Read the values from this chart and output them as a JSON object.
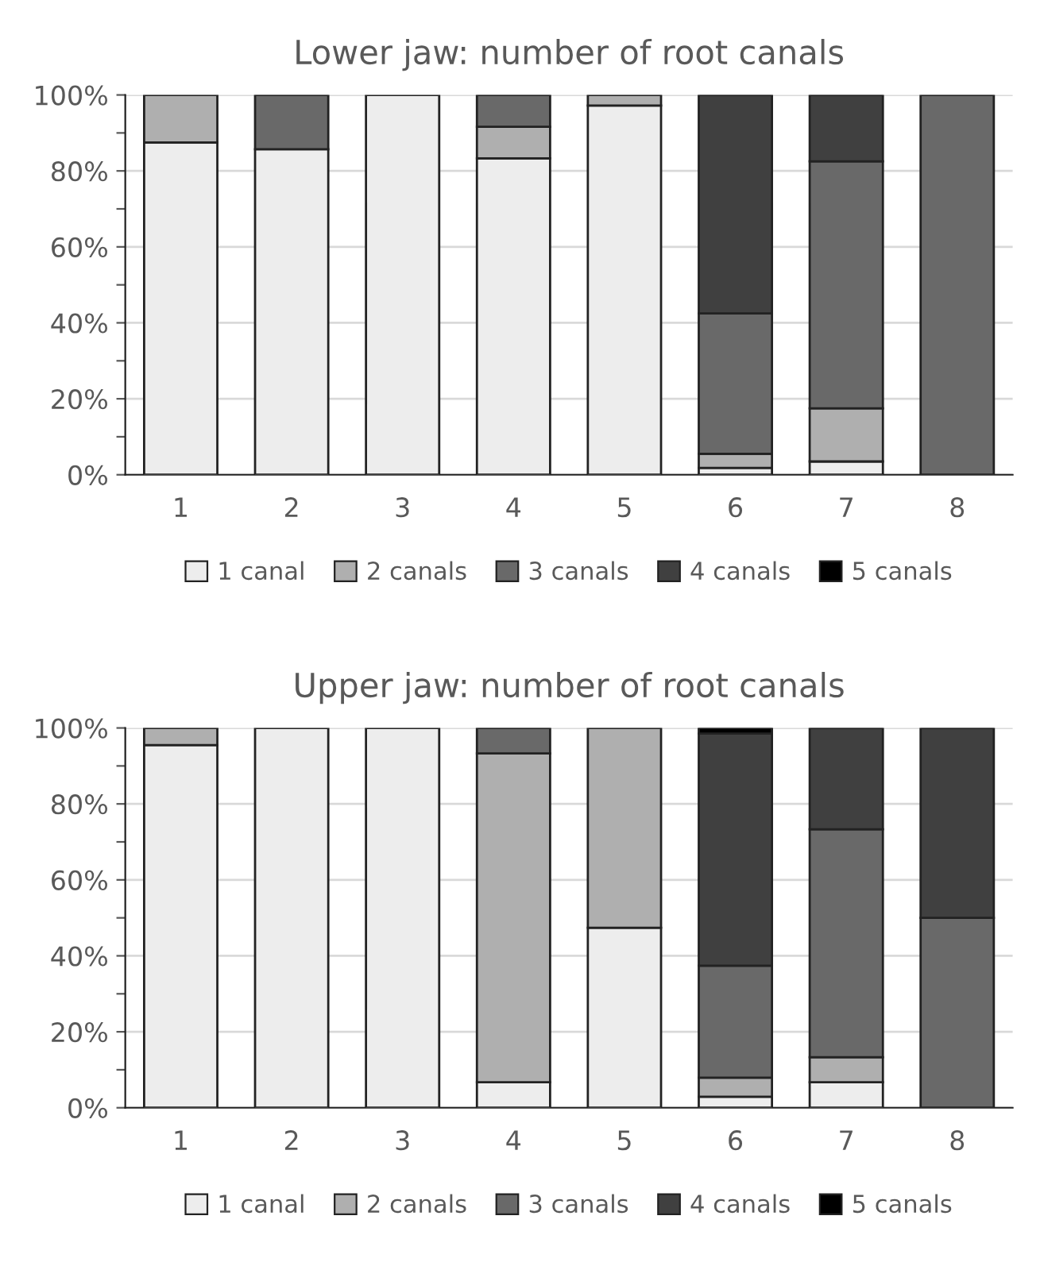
{
  "chart_data": [
    {
      "type": "bar",
      "stacked": true,
      "title": "Lower jaw: number of root canals",
      "categories": [
        "1",
        "2",
        "3",
        "4",
        "5",
        "6",
        "7",
        "8"
      ],
      "series": [
        {
          "name": "1 canal",
          "color": "#ededed",
          "values": [
            87.5,
            85.7,
            100,
            83.3,
            97.2,
            1.8,
            3.5,
            0
          ]
        },
        {
          "name": "2 canals",
          "color": "#afafaf",
          "values": [
            12.5,
            0,
            0,
            8.3,
            2.8,
            3.7,
            14,
            0
          ]
        },
        {
          "name": "3 canals",
          "color": "#696969",
          "values": [
            0,
            14.3,
            0,
            8.4,
            0,
            37,
            65,
            100
          ]
        },
        {
          "name": "4 canals",
          "color": "#404040",
          "values": [
            0,
            0,
            0,
            0,
            0,
            57.5,
            17.5,
            0
          ]
        },
        {
          "name": "5 canals",
          "color": "#000000",
          "values": [
            0,
            0,
            0,
            0,
            0,
            0,
            0,
            0
          ]
        }
      ],
      "ylim": [
        0,
        100
      ],
      "yticks": [
        {
          "value": 0,
          "label": "0%"
        },
        {
          "value": 10,
          "label": null
        },
        {
          "value": 20,
          "label": "20%"
        },
        {
          "value": 30,
          "label": null
        },
        {
          "value": 40,
          "label": "40%"
        },
        {
          "value": 50,
          "label": null
        },
        {
          "value": 60,
          "label": "60%"
        },
        {
          "value": 70,
          "label": null
        },
        {
          "value": 80,
          "label": "80%"
        },
        {
          "value": 90,
          "label": null
        },
        {
          "value": 100,
          "label": "100%"
        }
      ],
      "grid": "y",
      "legend": "bottom"
    },
    {
      "type": "bar",
      "stacked": true,
      "title": "Upper jaw: number of root canals",
      "categories": [
        "1",
        "2",
        "3",
        "4",
        "5",
        "6",
        "7",
        "8"
      ],
      "series": [
        {
          "name": "1 canal",
          "color": "#ededed",
          "values": [
            95.5,
            100,
            100,
            6.7,
            47.4,
            2.9,
            6.7,
            0
          ]
        },
        {
          "name": "2 canals",
          "color": "#afafaf",
          "values": [
            4.5,
            0,
            0,
            86.6,
            52.6,
            5,
            6.6,
            0
          ]
        },
        {
          "name": "3 canals",
          "color": "#696969",
          "values": [
            0,
            0,
            0,
            6.7,
            0,
            29.5,
            60,
            50
          ]
        },
        {
          "name": "4 canals",
          "color": "#404040",
          "values": [
            0,
            0,
            0,
            0,
            0,
            61.1,
            26.7,
            50
          ]
        },
        {
          "name": "5 canals",
          "color": "#000000",
          "values": [
            0,
            0,
            0,
            0,
            0,
            1.5,
            0,
            0
          ]
        }
      ],
      "ylim": [
        0,
        100
      ],
      "yticks": [
        {
          "value": 0,
          "label": "0%"
        },
        {
          "value": 10,
          "label": null
        },
        {
          "value": 20,
          "label": "20%"
        },
        {
          "value": 30,
          "label": null
        },
        {
          "value": 40,
          "label": "40%"
        },
        {
          "value": 50,
          "label": null
        },
        {
          "value": 60,
          "label": "60%"
        },
        {
          "value": 70,
          "label": null
        },
        {
          "value": 80,
          "label": "80%"
        },
        {
          "value": 90,
          "label": null
        },
        {
          "value": 100,
          "label": "100%"
        }
      ],
      "grid": "y",
      "legend": "bottom"
    }
  ]
}
